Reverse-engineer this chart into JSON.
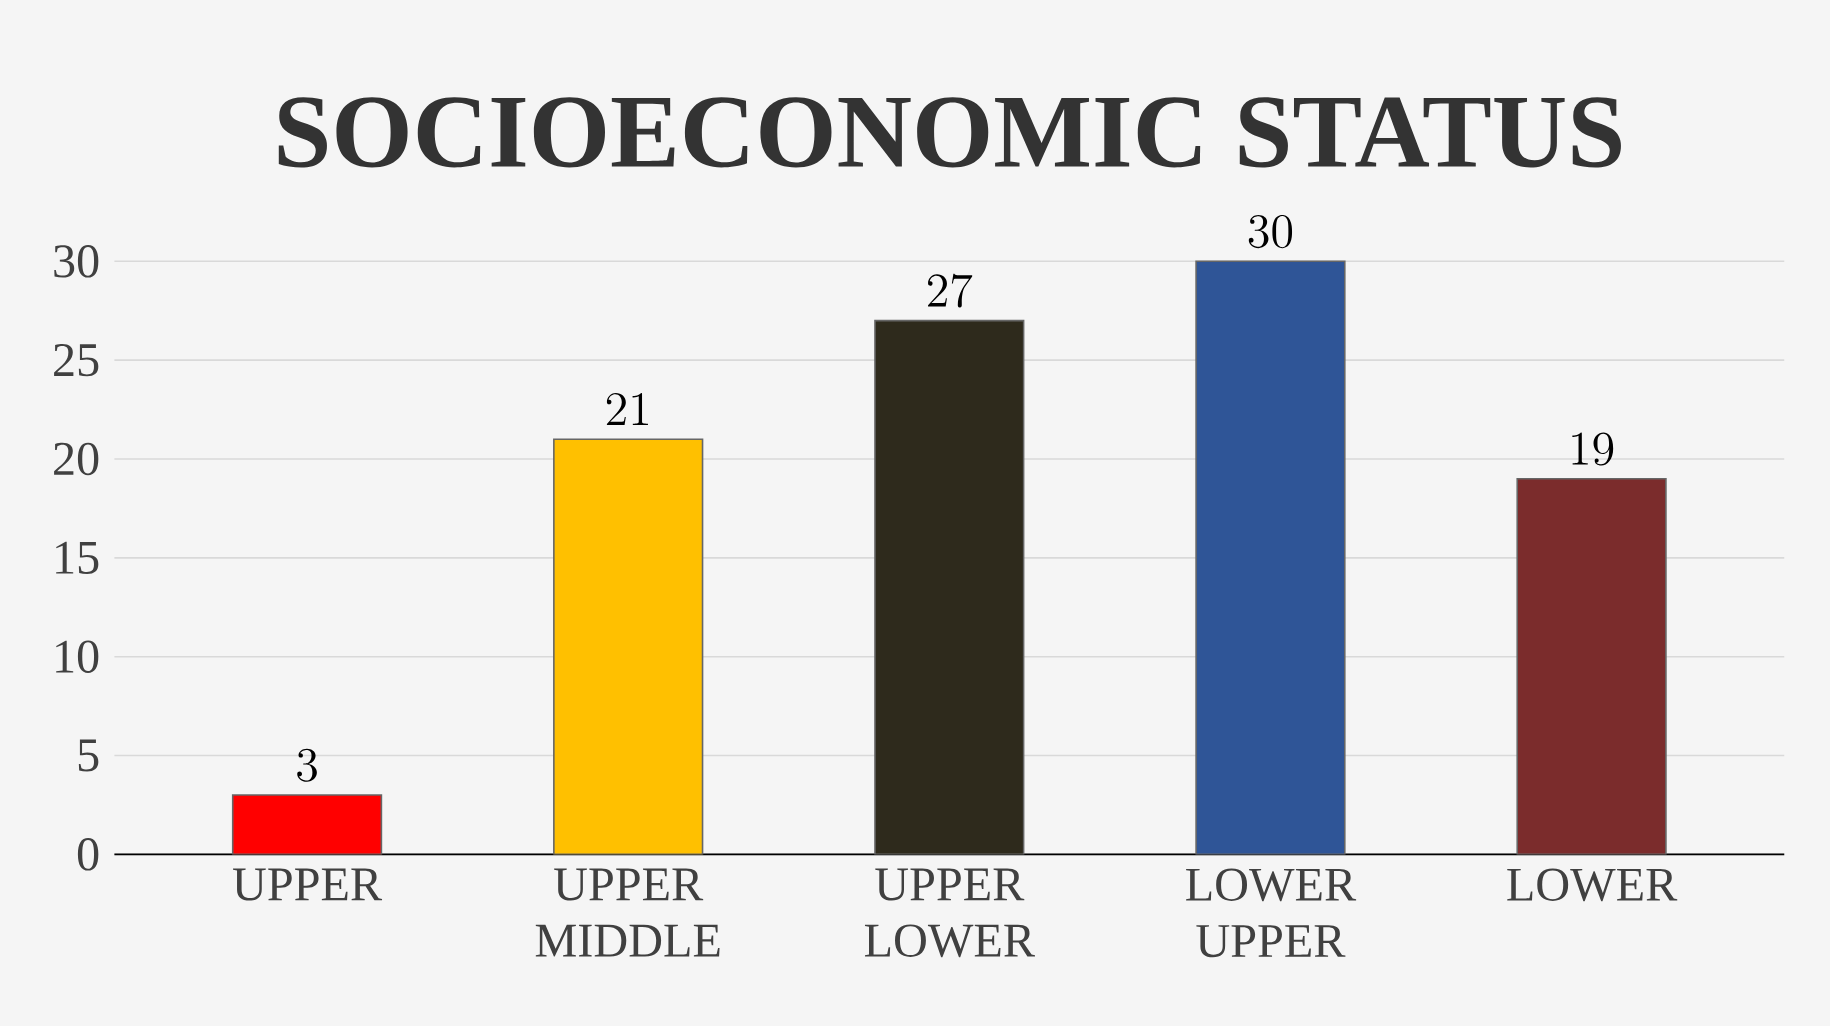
{
  "chart_data": {
    "type": "bar",
    "title": "SOCIOECONOMIC STATUS",
    "categories": [
      "UPPER",
      "UPPER MIDDLE",
      "UPPER LOWER",
      "LOWER UPPER",
      "LOWER"
    ],
    "values": [
      3,
      21,
      27,
      30,
      19
    ],
    "colors": [
      "#ff0000",
      "#ffc000",
      "#2e2a1c",
      "#2f5597",
      "#7b2c2c"
    ],
    "ylim": [
      0,
      30
    ],
    "yticks": [
      0,
      5,
      10,
      15,
      20,
      25,
      30
    ],
    "grid": "y",
    "data_labels": true
  }
}
